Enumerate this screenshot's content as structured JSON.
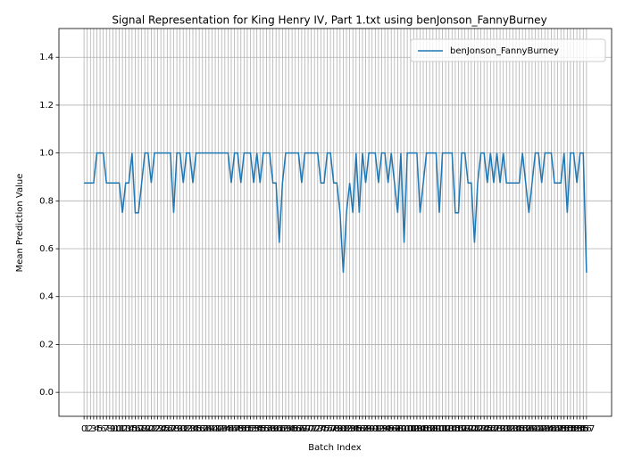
{
  "chart_data": {
    "type": "line",
    "title": "Signal Representation for King Henry IV, Part 1.txt using benJonson_FannyBurney",
    "xlabel": "Batch Index",
    "ylabel": "Mean Prediction Value",
    "x": [
      0,
      1,
      2,
      3,
      4,
      5,
      6,
      7,
      8,
      9,
      10,
      11,
      12,
      13,
      14,
      15,
      16,
      17,
      18,
      19,
      20,
      21,
      22,
      23,
      24,
      25,
      26,
      27,
      28,
      29,
      30,
      31,
      32,
      33,
      34,
      35,
      36,
      37,
      38,
      39,
      40,
      41,
      42,
      43,
      44,
      45,
      46,
      47,
      48,
      49,
      50,
      51,
      52,
      53,
      54,
      55,
      56,
      57,
      58,
      59,
      60,
      61,
      62,
      63,
      64,
      65,
      66,
      67,
      68,
      69,
      70,
      71,
      72,
      73,
      74,
      75,
      76,
      77,
      78,
      79,
      80,
      81,
      82,
      83,
      84,
      85,
      86,
      87,
      88,
      89,
      90,
      91,
      92,
      93,
      94,
      95,
      96,
      97,
      98,
      99,
      100,
      101,
      102,
      103,
      104,
      105,
      106,
      107,
      108,
      109,
      110,
      111,
      112,
      113,
      114,
      115,
      116,
      117,
      118,
      119,
      120,
      121,
      122,
      123,
      124,
      125,
      126,
      127,
      128,
      129,
      130,
      131,
      132,
      133,
      134,
      135,
      136,
      137,
      138,
      139,
      140,
      141,
      142,
      143,
      144,
      145,
      146,
      147,
      148,
      149,
      150,
      151,
      152,
      153,
      154,
      155,
      156,
      157
    ],
    "series": [
      {
        "name": "benJonson_FannyBurney",
        "color": "#1f77b4",
        "values": [
          0.875,
          0.875,
          0.875,
          0.875,
          1,
          1,
          1,
          0.875,
          0.875,
          0.875,
          0.875,
          0.875,
          0.75,
          0.875,
          0.875,
          1,
          0.75,
          0.75,
          0.875,
          1,
          1,
          0.875,
          1,
          1,
          1,
          1,
          1,
          1,
          0.75,
          1,
          1,
          0.875,
          1,
          1,
          0.875,
          1,
          1,
          1,
          1,
          1,
          1,
          1,
          1,
          1,
          1,
          1,
          0.875,
          1,
          1,
          0.875,
          1,
          1,
          1,
          0.875,
          1,
          0.875,
          1,
          1,
          1,
          0.875,
          0.875,
          0.625,
          0.875,
          1,
          1,
          1,
          1,
          1,
          0.875,
          1,
          1,
          1,
          1,
          1,
          0.875,
          0.875,
          1,
          1,
          0.875,
          0.875,
          0.75,
          0.5,
          0.75,
          0.875,
          0.75,
          1,
          0.75,
          1,
          0.875,
          1,
          1,
          1,
          0.875,
          1,
          1,
          0.875,
          1,
          0.875,
          0.75,
          1,
          0.625,
          1,
          1,
          1,
          1,
          0.75,
          0.875,
          1,
          1,
          1,
          1,
          0.75,
          1,
          1,
          1,
          1,
          0.75,
          0.75,
          1,
          1,
          0.875,
          0.875,
          0.625,
          0.875,
          1,
          1,
          0.875,
          1,
          0.875,
          1,
          0.875,
          1,
          0.875,
          0.875,
          0.875,
          0.875,
          0.875,
          1,
          0.875,
          0.75,
          0.875,
          1,
          1,
          0.875,
          1,
          1,
          1,
          0.875,
          0.875,
          0.875,
          1,
          0.75,
          1,
          1,
          0.875,
          1,
          1,
          0.5
        ]
      }
    ],
    "xlim": [
      -7.85,
      164.85
    ],
    "xticks": [
      0,
      1,
      2,
      3,
      4,
      5,
      6,
      7,
      8,
      9,
      10,
      11,
      12,
      13,
      14,
      15,
      16,
      17,
      18,
      19,
      20,
      21,
      22,
      23,
      24,
      25,
      26,
      27,
      28,
      29,
      30,
      31,
      32,
      33,
      34,
      35,
      36,
      37,
      38,
      39,
      40,
      41,
      42,
      43,
      44,
      45,
      46,
      47,
      48,
      49,
      50,
      51,
      52,
      53,
      54,
      55,
      56,
      57,
      58,
      59,
      60,
      61,
      62,
      63,
      64,
      65,
      66,
      67,
      68,
      69,
      70,
      71,
      72,
      73,
      74,
      75,
      76,
      77,
      78,
      79,
      80,
      81,
      82,
      83,
      84,
      85,
      86,
      87,
      88,
      89,
      90,
      91,
      92,
      93,
      94,
      95,
      96,
      97,
      98,
      99,
      100,
      101,
      102,
      103,
      104,
      105,
      106,
      107,
      108,
      109,
      110,
      111,
      112,
      113,
      114,
      115,
      116,
      117,
      118,
      119,
      120,
      121,
      122,
      123,
      124,
      125,
      126,
      127,
      128,
      129,
      130,
      131,
      132,
      133,
      134,
      135,
      136,
      137,
      138,
      139,
      140,
      141,
      142,
      143,
      144,
      145,
      146,
      147,
      148,
      149,
      150,
      151,
      152,
      153,
      154,
      155,
      156,
      157
    ],
    "ylim": [
      -0.1,
      1.52
    ],
    "yticks": [
      {
        "value": 0,
        "label": "0.0"
      },
      {
        "value": 0.2,
        "label": "0.2"
      },
      {
        "value": 0.4,
        "label": "0.4"
      },
      {
        "value": 0.6,
        "label": "0.6"
      },
      {
        "value": 0.8,
        "label": "0.8"
      },
      {
        "value": 1,
        "label": "1.0"
      },
      {
        "value": 1.2,
        "label": "1.2"
      },
      {
        "value": 1.4,
        "label": "1.4"
      }
    ],
    "grid": true,
    "legend": "upper right"
  }
}
